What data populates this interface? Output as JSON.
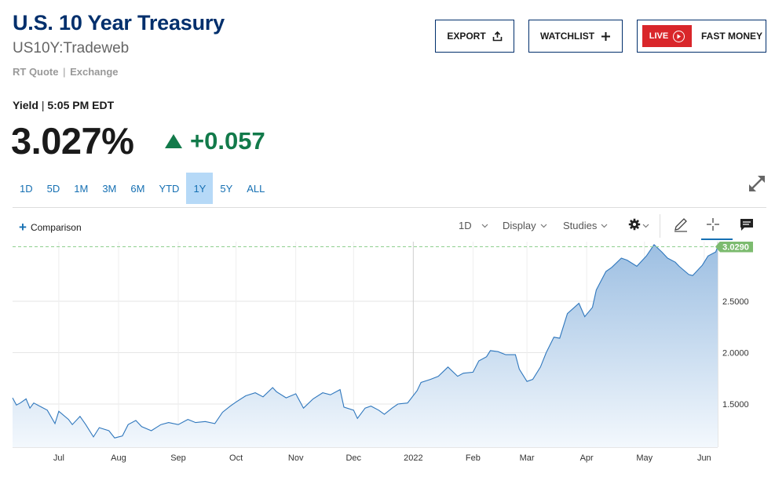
{
  "header": {
    "title": "U.S. 10 Year Treasury",
    "symbol": "US10Y:Tradeweb",
    "rt_quote": "RT Quote",
    "exchange": "Exchange"
  },
  "buttons": {
    "export": "EXPORT",
    "watchlist": "WATCHLIST",
    "live": "LIVE",
    "fast_money": "FAST MONEY"
  },
  "quote": {
    "yield_label": "Yield",
    "time": "5:05 PM EDT",
    "price": "3.027%",
    "change": "+0.057"
  },
  "ranges": [
    "1D",
    "5D",
    "1M",
    "3M",
    "6M",
    "YTD",
    "1Y",
    "5Y",
    "ALL"
  ],
  "active_range": "1Y",
  "toolbar": {
    "comparison": "Comparison",
    "interval": "1D",
    "display": "Display",
    "studies": "Studies"
  },
  "colors": {
    "brand": "#002f6c",
    "accent": "#1670b3",
    "up": "#127a4a",
    "live": "#d9262a",
    "last_price_tag": "#7cbb6f"
  },
  "chart_data": {
    "type": "area",
    "last_value_label": "3.0290",
    "y_ticks": [
      "1.5000",
      "2.0000",
      "2.5000"
    ],
    "y_tick_values": [
      1.5,
      2.0,
      2.5
    ],
    "ylim": [
      1.08,
      3.08
    ],
    "x_ticks": [
      "Jul",
      "Aug",
      "Sep",
      "Oct",
      "Nov",
      "Dec",
      "2022",
      "Feb",
      "Mar",
      "Apr",
      "May",
      "Jun"
    ],
    "x": [
      "Jun 7",
      "Jun 9",
      "Jun 11",
      "Jun 14",
      "Jun 16",
      "Jun 18",
      "Jun 22",
      "Jun 25",
      "Jun 29",
      "Jul 1",
      "Jul 6",
      "Jul 8",
      "Jul 12",
      "Jul 15",
      "Jul 19",
      "Jul 22",
      "Jul 27",
      "Jul 30",
      "Aug 3",
      "Aug 6",
      "Aug 10",
      "Aug 13",
      "Aug 18",
      "Aug 23",
      "Aug 27",
      "Sep 1",
      "Sep 6",
      "Sep 10",
      "Sep 15",
      "Sep 20",
      "Sep 24",
      "Sep 28",
      "Oct 1",
      "Oct 6",
      "Oct 11",
      "Oct 15",
      "Oct 20",
      "Oct 22",
      "Oct 27",
      "Nov 1",
      "Nov 5",
      "Nov 10",
      "Nov 15",
      "Nov 19",
      "Nov 24",
      "Nov 26",
      "Dec 1",
      "Dec 3",
      "Dec 7",
      "Dec 10",
      "Dec 14",
      "Dec 17",
      "Dec 21",
      "Dec 24",
      "Dec 29",
      "Jan 3",
      "Jan 5",
      "Jan 10",
      "Jan 14",
      "Jan 19",
      "Jan 24",
      "Jan 27",
      "Feb 1",
      "Feb 4",
      "Feb 8",
      "Feb 10",
      "Feb 14",
      "Feb 18",
      "Feb 23",
      "Feb 25",
      "Mar 1",
      "Mar 4",
      "Mar 8",
      "Mar 11",
      "Mar 15",
      "Mar 18",
      "Mar 22",
      "Mar 28",
      "Mar 31",
      "Apr 4",
      "Apr 6",
      "Apr 11",
      "Apr 14",
      "Apr 19",
      "Apr 22",
      "Apr 27",
      "May 2",
      "May 6",
      "May 10",
      "May 13",
      "May 17",
      "May 19",
      "May 24",
      "May 26",
      "May 31",
      "Jun 3",
      "Jun 7",
      "Jun 8"
    ],
    "t": [
      0,
      2,
      4,
      7,
      9,
      11,
      15,
      18,
      22,
      24,
      29,
      31,
      35,
      38,
      42,
      45,
      50,
      53,
      57,
      60,
      64,
      67,
      72,
      77,
      81,
      86,
      91,
      95,
      100,
      105,
      109,
      113,
      116,
      121,
      126,
      130,
      135,
      137,
      142,
      147,
      151,
      156,
      161,
      165,
      170,
      172,
      177,
      179,
      183,
      186,
      190,
      193,
      197,
      200,
      205,
      210,
      212,
      217,
      221,
      226,
      231,
      234,
      239,
      242,
      246,
      248,
      252,
      256,
      261,
      263,
      267,
      270,
      274,
      277,
      281,
      284,
      288,
      294,
      297,
      301,
      303,
      308,
      311,
      316,
      319,
      324,
      329,
      333,
      337,
      340,
      344,
      346,
      351,
      353,
      358,
      361,
      365,
      366
    ],
    "values": [
      1.56,
      1.49,
      1.51,
      1.55,
      1.46,
      1.51,
      1.47,
      1.44,
      1.31,
      1.43,
      1.35,
      1.3,
      1.38,
      1.3,
      1.18,
      1.27,
      1.24,
      1.17,
      1.19,
      1.3,
      1.34,
      1.28,
      1.24,
      1.3,
      1.32,
      1.3,
      1.35,
      1.32,
      1.33,
      1.31,
      1.42,
      1.48,
      1.52,
      1.58,
      1.61,
      1.57,
      1.66,
      1.62,
      1.56,
      1.6,
      1.46,
      1.55,
      1.61,
      1.59,
      1.64,
      1.47,
      1.44,
      1.36,
      1.46,
      1.48,
      1.44,
      1.4,
      1.46,
      1.5,
      1.51,
      1.63,
      1.71,
      1.74,
      1.77,
      1.86,
      1.77,
      1.8,
      1.81,
      1.92,
      1.96,
      2.02,
      2.01,
      1.98,
      1.98,
      1.84,
      1.72,
      1.74,
      1.86,
      2.0,
      2.15,
      2.14,
      2.38,
      2.48,
      2.35,
      2.44,
      2.61,
      2.79,
      2.83,
      2.92,
      2.9,
      2.84,
      2.94,
      3.05,
      2.98,
      2.92,
      2.88,
      2.84,
      2.76,
      2.75,
      2.85,
      2.94,
      2.98,
      3.03
    ]
  }
}
